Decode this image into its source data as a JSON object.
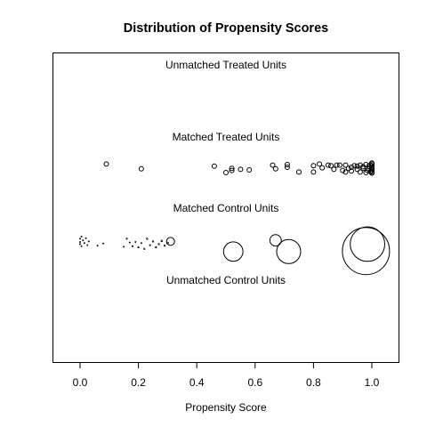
{
  "chart_data": {
    "type": "scatter",
    "title": "Distribution of Propensity Scores",
    "xlabel": "Propensity Score",
    "ylabel": "",
    "xlim": [
      -0.09,
      1.09
    ],
    "xticks": [
      "0.0",
      "0.2",
      "0.4",
      "0.6",
      "0.8",
      "1.0"
    ],
    "xtick_values": [
      0.0,
      0.2,
      0.4,
      0.6,
      0.8,
      1.0
    ],
    "marker": "open-circle",
    "color": "#000000",
    "grid": false,
    "group_labels": [
      "Unmatched Treated Units",
      "Matched Treated Units",
      "Matched Control Units",
      "Unmatched Control Units"
    ],
    "series": [
      {
        "name": "Unmatched Treated Units",
        "points": []
      },
      {
        "name": "Matched Treated Units",
        "points": [
          {
            "x": 0.09,
            "y": 0.3,
            "w": 1
          },
          {
            "x": 0.21,
            "y": -0.15,
            "w": 1
          },
          {
            "x": 0.46,
            "y": 0.1,
            "w": 1
          },
          {
            "x": 0.5,
            "y": -0.5,
            "w": 1
          },
          {
            "x": 0.52,
            "y": -0.3,
            "w": 1
          },
          {
            "x": 0.52,
            "y": -0.1,
            "w": 1
          },
          {
            "x": 0.55,
            "y": -0.2,
            "w": 1
          },
          {
            "x": 0.58,
            "y": -0.25,
            "w": 1
          },
          {
            "x": 0.66,
            "y": 0.2,
            "w": 1
          },
          {
            "x": 0.67,
            "y": -0.15,
            "w": 1
          },
          {
            "x": 0.71,
            "y": 0.25,
            "w": 1
          },
          {
            "x": 0.71,
            "y": 0.0,
            "w": 1
          },
          {
            "x": 0.75,
            "y": -0.45,
            "w": 1
          },
          {
            "x": 0.8,
            "y": 0.15,
            "w": 1
          },
          {
            "x": 0.8,
            "y": -0.45,
            "w": 1
          },
          {
            "x": 0.82,
            "y": 0.3,
            "w": 1
          },
          {
            "x": 0.83,
            "y": -0.05,
            "w": 1
          },
          {
            "x": 0.85,
            "y": 0.2,
            "w": 1
          },
          {
            "x": 0.86,
            "y": 0.15,
            "w": 1
          },
          {
            "x": 0.87,
            "y": -0.2,
            "w": 1
          },
          {
            "x": 0.88,
            "y": 0.2,
            "w": 1
          },
          {
            "x": 0.89,
            "y": 0.2,
            "w": 1
          },
          {
            "x": 0.9,
            "y": -0.3,
            "w": 1
          },
          {
            "x": 0.91,
            "y": -0.45,
            "w": 1
          },
          {
            "x": 0.91,
            "y": 0.2,
            "w": 1
          },
          {
            "x": 0.92,
            "y": -0.1,
            "w": 1
          },
          {
            "x": 0.93,
            "y": -0.35,
            "w": 1
          },
          {
            "x": 0.93,
            "y": 0.0,
            "w": 1
          },
          {
            "x": 0.94,
            "y": 0.15,
            "w": 1
          },
          {
            "x": 0.95,
            "y": -0.2,
            "w": 1
          },
          {
            "x": 0.95,
            "y": 0.1,
            "w": 1
          },
          {
            "x": 0.96,
            "y": -0.45,
            "w": 1
          },
          {
            "x": 0.96,
            "y": 0.2,
            "w": 1
          },
          {
            "x": 0.97,
            "y": -0.1,
            "w": 1
          },
          {
            "x": 0.97,
            "y": 0.05,
            "w": 1
          },
          {
            "x": 0.98,
            "y": -0.5,
            "w": 1
          },
          {
            "x": 0.98,
            "y": 0.25,
            "w": 1
          },
          {
            "x": 0.985,
            "y": -0.3,
            "w": 1
          },
          {
            "x": 0.99,
            "y": 0.1,
            "w": 1
          },
          {
            "x": 0.99,
            "y": -0.15,
            "w": 1
          },
          {
            "x": 0.995,
            "y": 0.2,
            "w": 1
          },
          {
            "x": 0.995,
            "y": -0.4,
            "w": 1
          },
          {
            "x": 1.0,
            "y": 0.3,
            "w": 1
          },
          {
            "x": 1.0,
            "y": 0.15,
            "w": 1
          },
          {
            "x": 1.0,
            "y": 0.0,
            "w": 1
          },
          {
            "x": 1.0,
            "y": -0.15,
            "w": 1
          },
          {
            "x": 1.0,
            "y": -0.3,
            "w": 1
          },
          {
            "x": 1.0,
            "y": -0.45,
            "w": 1
          },
          {
            "x": 1.0,
            "y": 0.4,
            "w": 1
          },
          {
            "x": 1.0,
            "y": -0.55,
            "w": 1
          }
        ]
      },
      {
        "name": "Matched Control Units",
        "points": [
          {
            "x": 0.0,
            "y": 0.3,
            "w": 0.05
          },
          {
            "x": 0.0,
            "y": 0.0,
            "w": 0.05
          },
          {
            "x": 0.0,
            "y": -0.2,
            "w": 0.05
          },
          {
            "x": 0.005,
            "y": 0.5,
            "w": 0.05
          },
          {
            "x": 0.005,
            "y": -0.4,
            "w": 0.05
          },
          {
            "x": 0.01,
            "y": 0.15,
            "w": 0.05
          },
          {
            "x": 0.015,
            "y": -0.1,
            "w": 0.05
          },
          {
            "x": 0.02,
            "y": 0.35,
            "w": 0.05
          },
          {
            "x": 0.025,
            "y": -0.3,
            "w": 0.05
          },
          {
            "x": 0.03,
            "y": 0.05,
            "w": 0.05
          },
          {
            "x": 0.06,
            "y": -0.35,
            "w": 0.05
          },
          {
            "x": 0.08,
            "y": -0.15,
            "w": 0.05
          },
          {
            "x": 0.15,
            "y": -0.45,
            "w": 0.06
          },
          {
            "x": 0.16,
            "y": 0.3,
            "w": 0.08
          },
          {
            "x": 0.17,
            "y": -0.05,
            "w": 0.06
          },
          {
            "x": 0.18,
            "y": -0.4,
            "w": 0.08
          },
          {
            "x": 0.19,
            "y": 0.0,
            "w": 0.06
          },
          {
            "x": 0.2,
            "y": -0.5,
            "w": 0.07
          },
          {
            "x": 0.21,
            "y": -0.1,
            "w": 0.06
          },
          {
            "x": 0.22,
            "y": -0.65,
            "w": 0.08
          },
          {
            "x": 0.23,
            "y": 0.3,
            "w": 0.1
          },
          {
            "x": 0.24,
            "y": -0.3,
            "w": 0.08
          },
          {
            "x": 0.25,
            "y": 0.05,
            "w": 0.1
          },
          {
            "x": 0.26,
            "y": -0.5,
            "w": 0.09
          },
          {
            "x": 0.27,
            "y": -0.2,
            "w": 0.1
          },
          {
            "x": 0.28,
            "y": 0.1,
            "w": 0.12
          },
          {
            "x": 0.29,
            "y": -0.35,
            "w": 0.1
          },
          {
            "x": 0.3,
            "y": -0.1,
            "w": 0.15
          },
          {
            "x": 0.31,
            "y": 0.05,
            "w": 3.2
          },
          {
            "x": 0.525,
            "y": -0.9,
            "w": 19
          },
          {
            "x": 0.67,
            "y": 0.15,
            "w": 6.5
          },
          {
            "x": 0.715,
            "y": -0.9,
            "w": 29
          },
          {
            "x": 0.98,
            "y": -0.85,
            "w": 112
          },
          {
            "x": 0.985,
            "y": -0.2,
            "w": 60
          }
        ]
      },
      {
        "name": "Unmatched Control Units",
        "points": []
      }
    ]
  }
}
